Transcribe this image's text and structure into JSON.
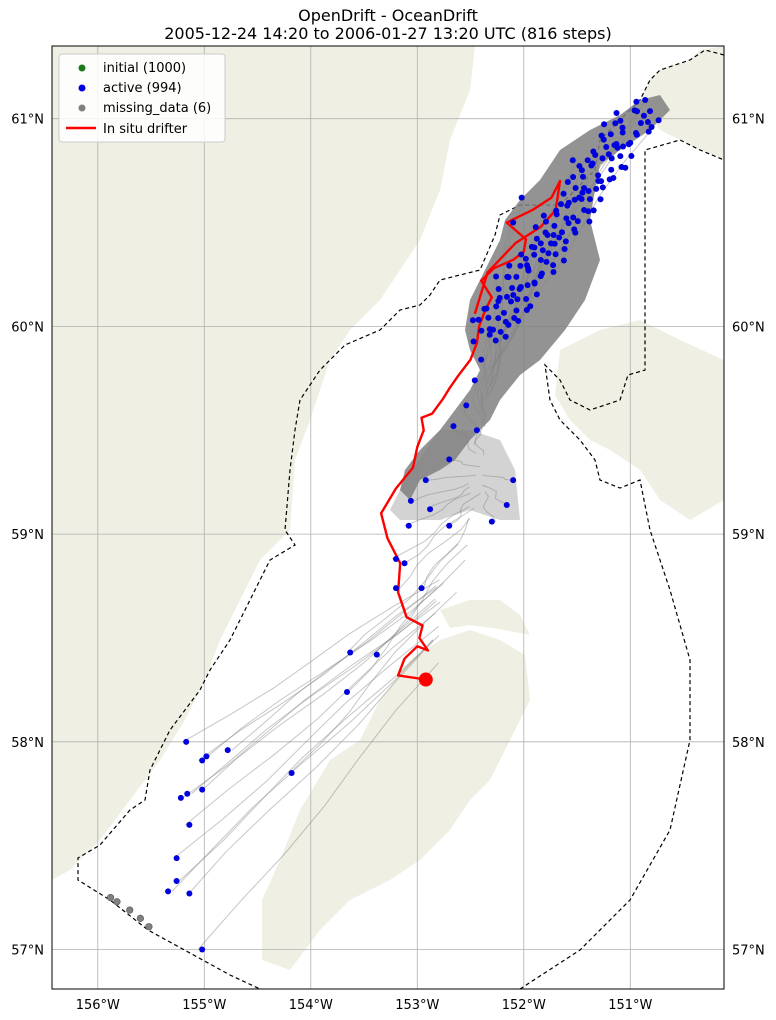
{
  "title": {
    "line1": "OpenDrift - OceanDrift",
    "line2": "2005-12-24 14:20 to 2006-01-27 13:20 UTC (816 steps)"
  },
  "map": {
    "lon_range": [
      -156.43,
      -150.12
    ],
    "lat_range": [
      56.81,
      61.35
    ],
    "lon_ticks": [
      "156°W",
      "155°W",
      "154°W",
      "153°W",
      "152°W",
      "151°W"
    ],
    "lon_tick_values": [
      -156,
      -155,
      -154,
      -153,
      -152,
      -151
    ],
    "lat_ticks": [
      "57°N",
      "58°N",
      "59°N",
      "60°N",
      "61°N"
    ],
    "lat_tick_values": [
      57,
      58,
      59,
      60,
      61
    ],
    "grid": true,
    "colors": {
      "land": "#efefe3",
      "ocean": "#ffffff",
      "gridline": "#b0b0b0",
      "trajectory": "#808080",
      "initial": "#1a7a1a",
      "active": "#0000dd",
      "missing_data": "#808080",
      "drifter": "#ff0000"
    }
  },
  "legend": {
    "position": "top-left",
    "items": [
      {
        "label": "initial (1000)",
        "marker": "dot",
        "color": "#1a7a1a"
      },
      {
        "label": "active (994)",
        "marker": "dot",
        "color": "#0000dd"
      },
      {
        "label": "missing_data (6)",
        "marker": "dot",
        "color": "#808080"
      },
      {
        "label": "In situ drifter",
        "marker": "line",
        "color": "#ff0000"
      }
    ]
  },
  "drifter_track": [
    [
      -152.92,
      58.3
    ],
    [
      -153.18,
      58.32
    ],
    [
      -153.12,
      58.4
    ],
    [
      -153.0,
      58.46
    ],
    [
      -152.9,
      58.44
    ],
    [
      -152.98,
      58.5
    ],
    [
      -152.95,
      58.56
    ],
    [
      -153.1,
      58.6
    ],
    [
      -153.18,
      58.72
    ],
    [
      -153.16,
      58.86
    ],
    [
      -153.28,
      58.98
    ],
    [
      -153.34,
      59.1
    ],
    [
      -153.2,
      59.22
    ],
    [
      -153.04,
      59.32
    ],
    [
      -153.0,
      59.42
    ],
    [
      -152.94,
      59.5
    ],
    [
      -152.96,
      59.56
    ],
    [
      -152.86,
      59.58
    ],
    [
      -152.76,
      59.65
    ],
    [
      -152.7,
      59.7
    ],
    [
      -152.62,
      59.76
    ],
    [
      -152.5,
      59.84
    ],
    [
      -152.44,
      59.92
    ],
    [
      -152.42,
      60.0
    ],
    [
      -152.36,
      60.08
    ],
    [
      -152.3,
      60.14
    ],
    [
      -152.4,
      60.22
    ],
    [
      -152.28,
      60.28
    ],
    [
      -152.1,
      60.32
    ],
    [
      -152.0,
      60.36
    ],
    [
      -151.98,
      60.42
    ],
    [
      -152.16,
      60.5
    ],
    [
      -151.92,
      60.56
    ],
    [
      -151.74,
      60.62
    ],
    [
      -151.66,
      60.7
    ],
    [
      -151.7,
      60.56
    ],
    [
      -151.84,
      60.48
    ],
    [
      -152.08,
      60.4
    ],
    [
      -152.34,
      60.26
    ],
    [
      -152.46,
      60.06
    ]
  ],
  "drifter_end": [
    -152.92,
    58.3
  ],
  "active_points": [
    [
      -150.86,
      61.09
    ],
    [
      -150.96,
      61.04
    ],
    [
      -150.8,
      60.96
    ],
    [
      -151.12,
      60.86
    ],
    [
      -151.4,
      60.8
    ],
    [
      -151.3,
      60.7
    ],
    [
      -151.48,
      60.62
    ],
    [
      -151.6,
      60.52
    ],
    [
      -151.72,
      60.44
    ],
    [
      -151.9,
      60.38
    ],
    [
      -151.96,
      60.28
    ],
    [
      -152.04,
      60.18
    ],
    [
      -152.12,
      60.12
    ],
    [
      -152.24,
      60.04
    ],
    [
      -152.32,
      59.96
    ],
    [
      -152.4,
      59.84
    ],
    [
      -152.46,
      59.74
    ],
    [
      -152.54,
      59.62
    ],
    [
      -152.66,
      59.52
    ],
    [
      -152.7,
      59.36
    ],
    [
      -152.92,
      59.26
    ],
    [
      -153.06,
      59.16
    ],
    [
      -152.88,
      59.12
    ],
    [
      -153.08,
      59.04
    ],
    [
      -152.7,
      59.04
    ],
    [
      -152.3,
      59.06
    ],
    [
      -152.16,
      59.14
    ],
    [
      -152.1,
      59.26
    ],
    [
      -153.2,
      58.88
    ],
    [
      -153.12,
      58.86
    ],
    [
      -153.2,
      58.74
    ],
    [
      -152.96,
      58.74
    ],
    [
      -153.63,
      58.43
    ],
    [
      -153.38,
      58.42
    ],
    [
      -153.66,
      58.24
    ],
    [
      -154.78,
      57.96
    ],
    [
      -154.98,
      57.93
    ],
    [
      -155.02,
      57.91
    ],
    [
      -155.17,
      58.0
    ],
    [
      -155.22,
      57.73
    ],
    [
      -155.16,
      57.75
    ],
    [
      -155.02,
      57.77
    ],
    [
      -155.14,
      57.6
    ],
    [
      -155.26,
      57.44
    ],
    [
      -155.26,
      57.33
    ],
    [
      -155.34,
      57.28
    ],
    [
      -155.14,
      57.27
    ],
    [
      -155.02,
      57.0
    ],
    [
      -154.18,
      57.85
    ],
    [
      -152.44,
      59.5
    ],
    [
      -152.02,
      60.62
    ],
    [
      -152.1,
      60.5
    ],
    [
      -151.84,
      60.32
    ],
    [
      -152.26,
      60.24
    ],
    [
      -151.54,
      60.8
    ]
  ],
  "missing_points": [
    [
      -155.88,
      57.25
    ],
    [
      -155.82,
      57.23
    ],
    [
      -155.7,
      57.19
    ],
    [
      -155.6,
      57.15
    ],
    [
      -155.52,
      57.11
    ]
  ]
}
